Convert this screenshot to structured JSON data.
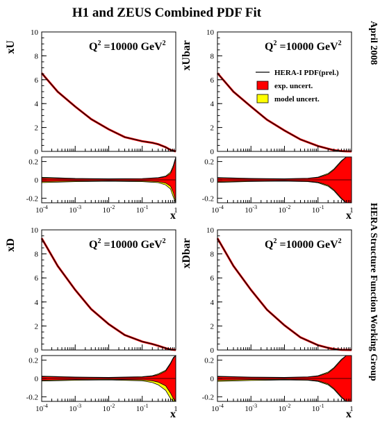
{
  "title": "H1 and ZEUS Combined PDF Fit",
  "side_labels": {
    "date": "April 2008",
    "group": "HERA Structure Function Working Group"
  },
  "legend": {
    "entries": [
      {
        "label": "HERA-I PDF(prel.)",
        "kind": "line",
        "color": "#000000"
      },
      {
        "label": "exp. uncert.",
        "kind": "box",
        "color": "#ff0000"
      },
      {
        "label": "model uncert.",
        "kind": "box",
        "color": "#ffff00"
      }
    ]
  },
  "colors": {
    "exp": "#ff0000",
    "model": "#ffff00",
    "central": "#000000"
  },
  "chart_data": [
    {
      "type": "line",
      "name": "xU",
      "ylabel": "xU",
      "xlabel": "x",
      "annotation": {
        "q": "Q",
        "sup": "2",
        "rest": "=10000 GeV",
        "sup2": "2"
      },
      "xscale": "log",
      "xlim": [
        0.0001,
        1
      ],
      "ylim": [
        0,
        10
      ],
      "yticks": [
        0,
        2,
        4,
        6,
        8,
        10
      ],
      "x": [
        0.0001,
        0.0003,
        0.001,
        0.003,
        0.01,
        0.03,
        0.1,
        0.2,
        0.3,
        0.5,
        0.7,
        1.0
      ],
      "y": [
        6.55,
        5.0,
        3.75,
        2.7,
        1.85,
        1.2,
        0.85,
        0.72,
        0.6,
        0.35,
        0.12,
        0.0
      ],
      "ratio": {
        "ylim": [
          -0.25,
          0.25
        ],
        "yticks": [
          -0.2,
          0,
          0.2
        ],
        "x": [
          0.0001,
          0.001,
          0.01,
          0.1,
          0.3,
          0.5,
          0.7,
          0.85,
          1.0
        ],
        "exp_up": [
          0.02,
          0.012,
          0.01,
          0.012,
          0.02,
          0.035,
          0.07,
          0.14,
          0.24
        ],
        "exp_dn": [
          -0.02,
          -0.012,
          -0.01,
          -0.012,
          -0.02,
          -0.035,
          -0.07,
          -0.14,
          -0.24
        ],
        "mod_up": [
          0.028,
          0.016,
          0.012,
          0.014,
          0.024,
          0.042,
          0.085,
          0.16,
          0.25
        ],
        "mod_dn": [
          -0.03,
          -0.02,
          -0.015,
          -0.02,
          -0.03,
          -0.055,
          -0.1,
          -0.19,
          -0.25
        ]
      }
    },
    {
      "type": "line",
      "name": "xUbar",
      "ylabel": "xUbar",
      "xlabel": "x",
      "annotation": {
        "q": "Q",
        "sup": "2",
        "rest": "=10000 GeV",
        "sup2": "2"
      },
      "xscale": "log",
      "xlim": [
        0.0001,
        1
      ],
      "ylim": [
        0,
        10
      ],
      "yticks": [
        0,
        2,
        4,
        6,
        8,
        10
      ],
      "x": [
        0.0001,
        0.0003,
        0.001,
        0.003,
        0.01,
        0.03,
        0.1,
        0.2,
        0.3,
        0.5,
        0.7,
        1.0
      ],
      "y": [
        6.55,
        5.0,
        3.75,
        2.65,
        1.75,
        1.0,
        0.45,
        0.22,
        0.1,
        0.03,
        0.005,
        0.0
      ],
      "ratio": {
        "ylim": [
          -0.25,
          0.25
        ],
        "yticks": [
          -0.2,
          0,
          0.2
        ],
        "x": [
          0.0001,
          0.001,
          0.01,
          0.05,
          0.1,
          0.2,
          0.3,
          0.5,
          0.7,
          1.0
        ],
        "exp_up": [
          0.02,
          0.012,
          0.01,
          0.015,
          0.025,
          0.06,
          0.11,
          0.2,
          0.25,
          0.25
        ],
        "exp_dn": [
          -0.02,
          -0.012,
          -0.01,
          -0.015,
          -0.025,
          -0.06,
          -0.11,
          -0.2,
          -0.25,
          -0.25
        ],
        "mod_up": [
          0.026,
          0.016,
          0.012,
          0.018,
          0.03,
          0.07,
          0.12,
          0.21,
          0.25,
          0.25
        ],
        "mod_dn": [
          -0.028,
          -0.018,
          -0.014,
          -0.02,
          -0.032,
          -0.07,
          -0.12,
          -0.21,
          -0.25,
          -0.25
        ]
      }
    },
    {
      "type": "line",
      "name": "xD",
      "ylabel": "xD",
      "xlabel": "x",
      "annotation": {
        "q": "Q",
        "sup": "2",
        "rest": "=10000 GeV",
        "sup2": "2"
      },
      "xscale": "log",
      "xlim": [
        0.0001,
        1
      ],
      "ylim": [
        0,
        10
      ],
      "yticks": [
        0,
        2,
        4,
        6,
        8,
        10
      ],
      "x": [
        0.0001,
        0.0003,
        0.001,
        0.003,
        0.01,
        0.03,
        0.1,
        0.2,
        0.3,
        0.5,
        0.7,
        1.0
      ],
      "y": [
        9.3,
        7.0,
        5.0,
        3.4,
        2.15,
        1.25,
        0.7,
        0.5,
        0.35,
        0.15,
        0.04,
        0.0
      ],
      "ratio": {
        "ylim": [
          -0.25,
          0.25
        ],
        "yticks": [
          -0.2,
          0,
          0.2
        ],
        "x": [
          0.0001,
          0.001,
          0.01,
          0.1,
          0.2,
          0.3,
          0.5,
          0.7,
          0.85,
          1.0
        ],
        "exp_up": [
          0.02,
          0.012,
          0.01,
          0.015,
          0.025,
          0.04,
          0.08,
          0.16,
          0.22,
          0.25
        ],
        "exp_dn": [
          -0.02,
          -0.012,
          -0.01,
          -0.015,
          -0.025,
          -0.04,
          -0.08,
          -0.16,
          -0.22,
          -0.25
        ],
        "mod_up": [
          0.026,
          0.016,
          0.012,
          0.02,
          0.03,
          0.05,
          0.09,
          0.17,
          0.23,
          0.25
        ],
        "mod_dn": [
          -0.028,
          -0.02,
          -0.016,
          -0.025,
          -0.045,
          -0.07,
          -0.13,
          -0.22,
          -0.25,
          -0.25
        ]
      }
    },
    {
      "type": "line",
      "name": "xDbar",
      "ylabel": "xDbar",
      "xlabel": "x",
      "annotation": {
        "q": "Q",
        "sup": "2",
        "rest": "=10000 GeV",
        "sup2": "2"
      },
      "xscale": "log",
      "xlim": [
        0.0001,
        1
      ],
      "ylim": [
        0,
        10
      ],
      "yticks": [
        0,
        2,
        4,
        6,
        8,
        10
      ],
      "x": [
        0.0001,
        0.0003,
        0.001,
        0.003,
        0.01,
        0.03,
        0.1,
        0.2,
        0.3,
        0.5,
        0.7,
        1.0
      ],
      "y": [
        9.3,
        7.0,
        5.0,
        3.35,
        2.05,
        1.05,
        0.4,
        0.18,
        0.08,
        0.02,
        0.003,
        0.0
      ],
      "ratio": {
        "ylim": [
          -0.25,
          0.25
        ],
        "yticks": [
          -0.2,
          0,
          0.2
        ],
        "x": [
          0.0001,
          0.001,
          0.01,
          0.05,
          0.1,
          0.2,
          0.3,
          0.5,
          0.7,
          1.0
        ],
        "exp_up": [
          0.02,
          0.012,
          0.01,
          0.015,
          0.025,
          0.06,
          0.11,
          0.2,
          0.25,
          0.25
        ],
        "exp_dn": [
          -0.02,
          -0.012,
          -0.01,
          -0.015,
          -0.025,
          -0.06,
          -0.11,
          -0.2,
          -0.25,
          -0.25
        ],
        "mod_up": [
          0.024,
          0.015,
          0.012,
          0.018,
          0.03,
          0.07,
          0.12,
          0.21,
          0.25,
          0.25
        ],
        "mod_dn": [
          -0.032,
          -0.022,
          -0.016,
          -0.02,
          -0.032,
          -0.07,
          -0.12,
          -0.21,
          -0.25,
          -0.25
        ]
      }
    }
  ]
}
